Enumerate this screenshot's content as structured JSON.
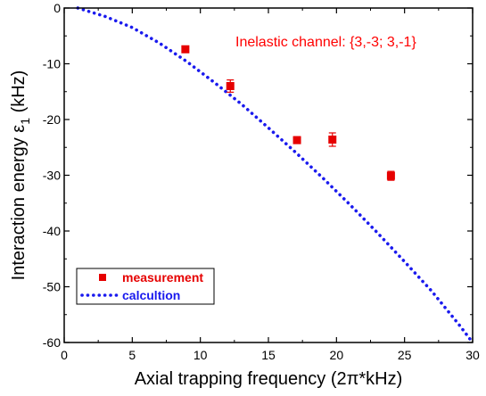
{
  "chart_data": {
    "type": "scatter",
    "xlabel": "Axial trapping frequency (2π*kHz)",
    "ylabel_main": "Interaction energy ε",
    "ylabel_sub": "1",
    "ylabel_unit": " (kHz)",
    "xlim": [
      0,
      30
    ],
    "ylim": [
      -60,
      0
    ],
    "xticks": [
      0,
      5,
      10,
      15,
      20,
      25,
      30
    ],
    "yticks": [
      0,
      -10,
      -20,
      -30,
      -40,
      -50,
      -60
    ],
    "annotation": "Inelastic channel: {3,-3; 3,-1}",
    "annotation_color": "#ff0000",
    "legend_position": "bottom-left",
    "series": [
      {
        "name": "measurement",
        "kind": "markers",
        "color": "#e60000",
        "points": [
          {
            "x": 8.9,
            "y": -7.4,
            "err": 0.5
          },
          {
            "x": 12.2,
            "y": -14.0,
            "err": 1.1
          },
          {
            "x": 17.1,
            "y": -23.7,
            "err": 0.6
          },
          {
            "x": 19.7,
            "y": -23.6,
            "err": 1.2
          },
          {
            "x": 24.0,
            "y": -30.1,
            "err": 0.8
          }
        ]
      },
      {
        "name": "calcultion",
        "kind": "dotted-line",
        "color": "#1a1aee",
        "points": [
          {
            "x": 1.0,
            "y": 0.0
          },
          {
            "x": 3.0,
            "y": -1.5
          },
          {
            "x": 5.0,
            "y": -3.5
          },
          {
            "x": 7.0,
            "y": -6.3
          },
          {
            "x": 9.0,
            "y": -9.6
          },
          {
            "x": 11.0,
            "y": -13.3
          },
          {
            "x": 13.0,
            "y": -17.2
          },
          {
            "x": 15.0,
            "y": -21.5
          },
          {
            "x": 17.0,
            "y": -25.9
          },
          {
            "x": 19.0,
            "y": -30.5
          },
          {
            "x": 21.0,
            "y": -35.3
          },
          {
            "x": 23.0,
            "y": -40.3
          },
          {
            "x": 25.0,
            "y": -45.5
          },
          {
            "x": 27.0,
            "y": -50.8
          },
          {
            "x": 29.0,
            "y": -56.8
          },
          {
            "x": 30.0,
            "y": -60.0
          }
        ]
      }
    ]
  }
}
